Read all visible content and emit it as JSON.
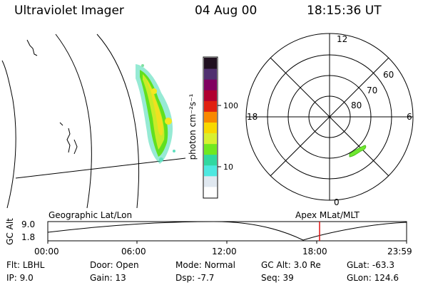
{
  "header": {
    "instrument": "Ultraviolet Imager",
    "date": "04 Aug 00",
    "time": "18:15:36 UT"
  },
  "colorbar": {
    "unit_label": "photon cm⁻²s⁻¹",
    "tick_100": "100",
    "tick_10": "10",
    "colors": [
      "#ffffff",
      "#e0e8f0",
      "#4ee8e0",
      "#30d8a0",
      "#70e820",
      "#d8f030",
      "#f8d800",
      "#f88800",
      "#e02010",
      "#b00030",
      "#800060",
      "#503070",
      "#201020"
    ]
  },
  "polar_plot": {
    "labels": {
      "top": "12",
      "left": "18",
      "right": "6",
      "bottom": "0"
    },
    "lat_rings": [
      "60",
      "70",
      "80"
    ]
  },
  "timeline": {
    "left_title": "Geographic Lat/Lon",
    "right_title": "Apex MLat/MLT",
    "axis_label": "GC Alt",
    "y_max": "9.0",
    "y_min": "1.8",
    "x_ticks": [
      "00:00",
      "06:00",
      "12:00",
      "18:00",
      "23:59"
    ],
    "current_marker_color": "#e01010"
  },
  "footer": {
    "row1": [
      {
        "key": "Flt:",
        "value": "LBHL"
      },
      {
        "key": "Door:",
        "value": "Open"
      },
      {
        "key": "Mode:",
        "value": "Normal"
      },
      {
        "key": "GC Alt:",
        "value": "3.0 Re"
      },
      {
        "key": "GLat:",
        "value": "-63.3"
      }
    ],
    "row2": [
      {
        "key": "IP:",
        "value": "9.0"
      },
      {
        "key": "Gain:",
        "value": "13"
      },
      {
        "key": "Dsp:",
        "value": "-7.7"
      },
      {
        "key": "Seq:",
        "value": "39"
      },
      {
        "key": "GLon:",
        "value": "124.6"
      }
    ]
  }
}
